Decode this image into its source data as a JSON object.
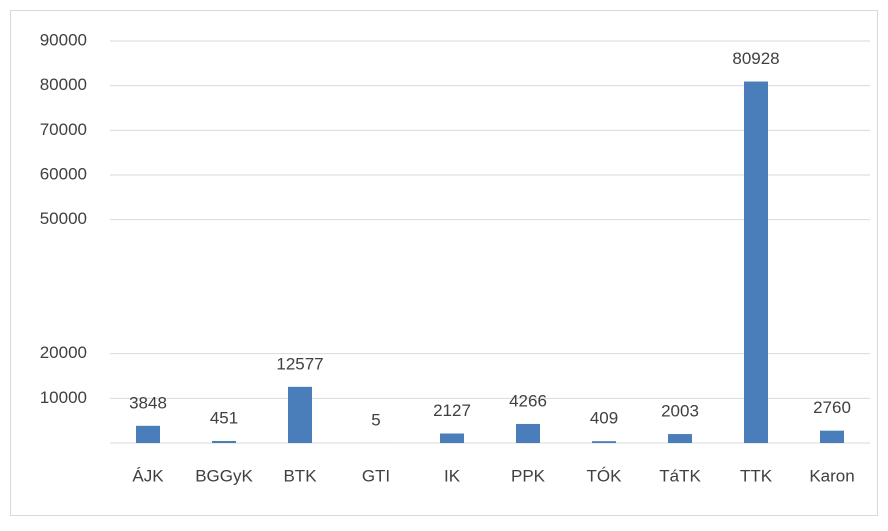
{
  "chart_data": {
    "type": "bar",
    "categories": [
      "ÁJK",
      "BGGyK",
      "BTK",
      "GTI",
      "IK",
      "PPK",
      "TÓK",
      "TáTK",
      "TTK",
      "Karon"
    ],
    "values": [
      3848,
      451,
      12577,
      5,
      2127,
      4266,
      409,
      2003,
      80928,
      2760
    ],
    "color": "#4a7ebb",
    "ylim": [
      0,
      90000
    ],
    "yticks": [
      10000,
      20000,
      50000,
      60000,
      70000,
      80000,
      90000
    ],
    "grid": true
  }
}
